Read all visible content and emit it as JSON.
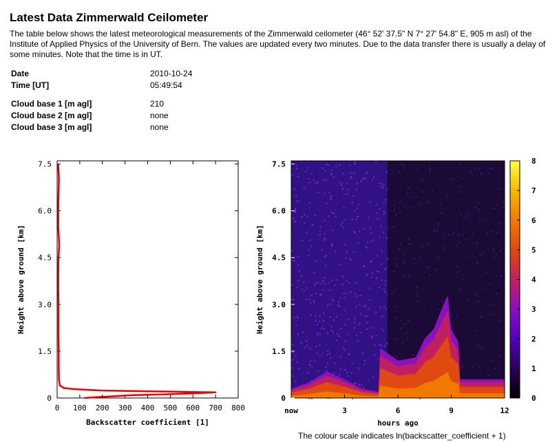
{
  "page": {
    "title": "Latest Data Zimmerwald Ceilometer",
    "intro": "The table below shows the latest meteorological measurements of the Zimmerwald ceilometer (46° 52' 37.5\" N 7° 27' 54.8\" E, 905 m asl) of the Institute of Applied Physics of the University of Bern. The values are updated every two minutes. Due to the data transfer there is usually a delay of some minutes. Note that the time is in UT."
  },
  "measurements": [
    {
      "label": "Date",
      "value": "2010-10-24"
    },
    {
      "label": "Time [UT]",
      "value": "05:49:54"
    },
    {
      "label": "Cloud base 1 [m agl]",
      "value": "210"
    },
    {
      "label": "Cloud base 2 [m agl]",
      "value": "none"
    },
    {
      "label": "Cloud base 3 [m agl]",
      "value": "none"
    }
  ],
  "chart_data": [
    {
      "type": "line",
      "xlabel": "Backscatter coefficient [1]",
      "ylabel": "Height above ground [km]",
      "xlim": [
        0,
        800
      ],
      "ylim": [
        0,
        7.6
      ],
      "xticks": [
        "0",
        "100",
        "200",
        "300",
        "400",
        "500",
        "600",
        "700",
        "800"
      ],
      "yticks": [
        "0",
        "1.5",
        "3.0",
        "4.5",
        "6.0",
        "7.5"
      ],
      "color": "#e00000",
      "profile": {
        "height_km": [
          0,
          0.03,
          0.06,
          0.09,
          0.12,
          0.15,
          0.18,
          0.21,
          0.24,
          0.28,
          0.32,
          0.4,
          0.6,
          1.0,
          1.5,
          2.0,
          2.5,
          3.0,
          3.5,
          4.0,
          4.5,
          4.9,
          5.5,
          6.0,
          6.5,
          7.0,
          7.5
        ],
        "backscatter": [
          120,
          180,
          260,
          330,
          480,
          610,
          700,
          450,
          200,
          80,
          30,
          12,
          8,
          7,
          7,
          6,
          6,
          6,
          5,
          5,
          6,
          9,
          5,
          5,
          6,
          8,
          5
        ]
      }
    },
    {
      "type": "heatmap",
      "xlabel": "hours ago",
      "ylabel": "Height above ground [km]",
      "xlim": [
        0,
        12
      ],
      "ylim": [
        0,
        7.6
      ],
      "xticks": [
        "now",
        "3",
        "6",
        "9",
        "12"
      ],
      "yticks": [
        "0",
        "1.5",
        "3.0",
        "4.5",
        "6.0",
        "7.5"
      ],
      "colorbar": {
        "min": 0,
        "max": 8,
        "ticks": [
          "0",
          "1",
          "2",
          "3",
          "4",
          "5",
          "6",
          "7",
          "8"
        ],
        "colors": [
          "#000000",
          "#2a0055",
          "#5500bb",
          "#8a10c0",
          "#c0205e",
          "#e04a10",
          "#f07a00",
          "#f7b800",
          "#ffff40"
        ]
      },
      "features": {
        "boundary_layer_top_km": [
          [
            0,
            0.3
          ],
          [
            1,
            0.5
          ],
          [
            2,
            0.85
          ],
          [
            3,
            0.6
          ],
          [
            4,
            0.3
          ],
          [
            4.9,
            0.2
          ],
          [
            5,
            1.6
          ],
          [
            6,
            1.2
          ],
          [
            7,
            1.3
          ],
          [
            7.5,
            1.9
          ],
          [
            8,
            2.2
          ],
          [
            8.5,
            2.9
          ],
          [
            8.8,
            3.3
          ],
          [
            9.0,
            2.2
          ],
          [
            9.4,
            1.8
          ],
          [
            9.5,
            0.6
          ],
          [
            12,
            0.6
          ]
        ],
        "background_high_until_hours": 5.4
      },
      "caption": "The colour scale indicates ln(backscatter_coefficient + 1)"
    }
  ]
}
